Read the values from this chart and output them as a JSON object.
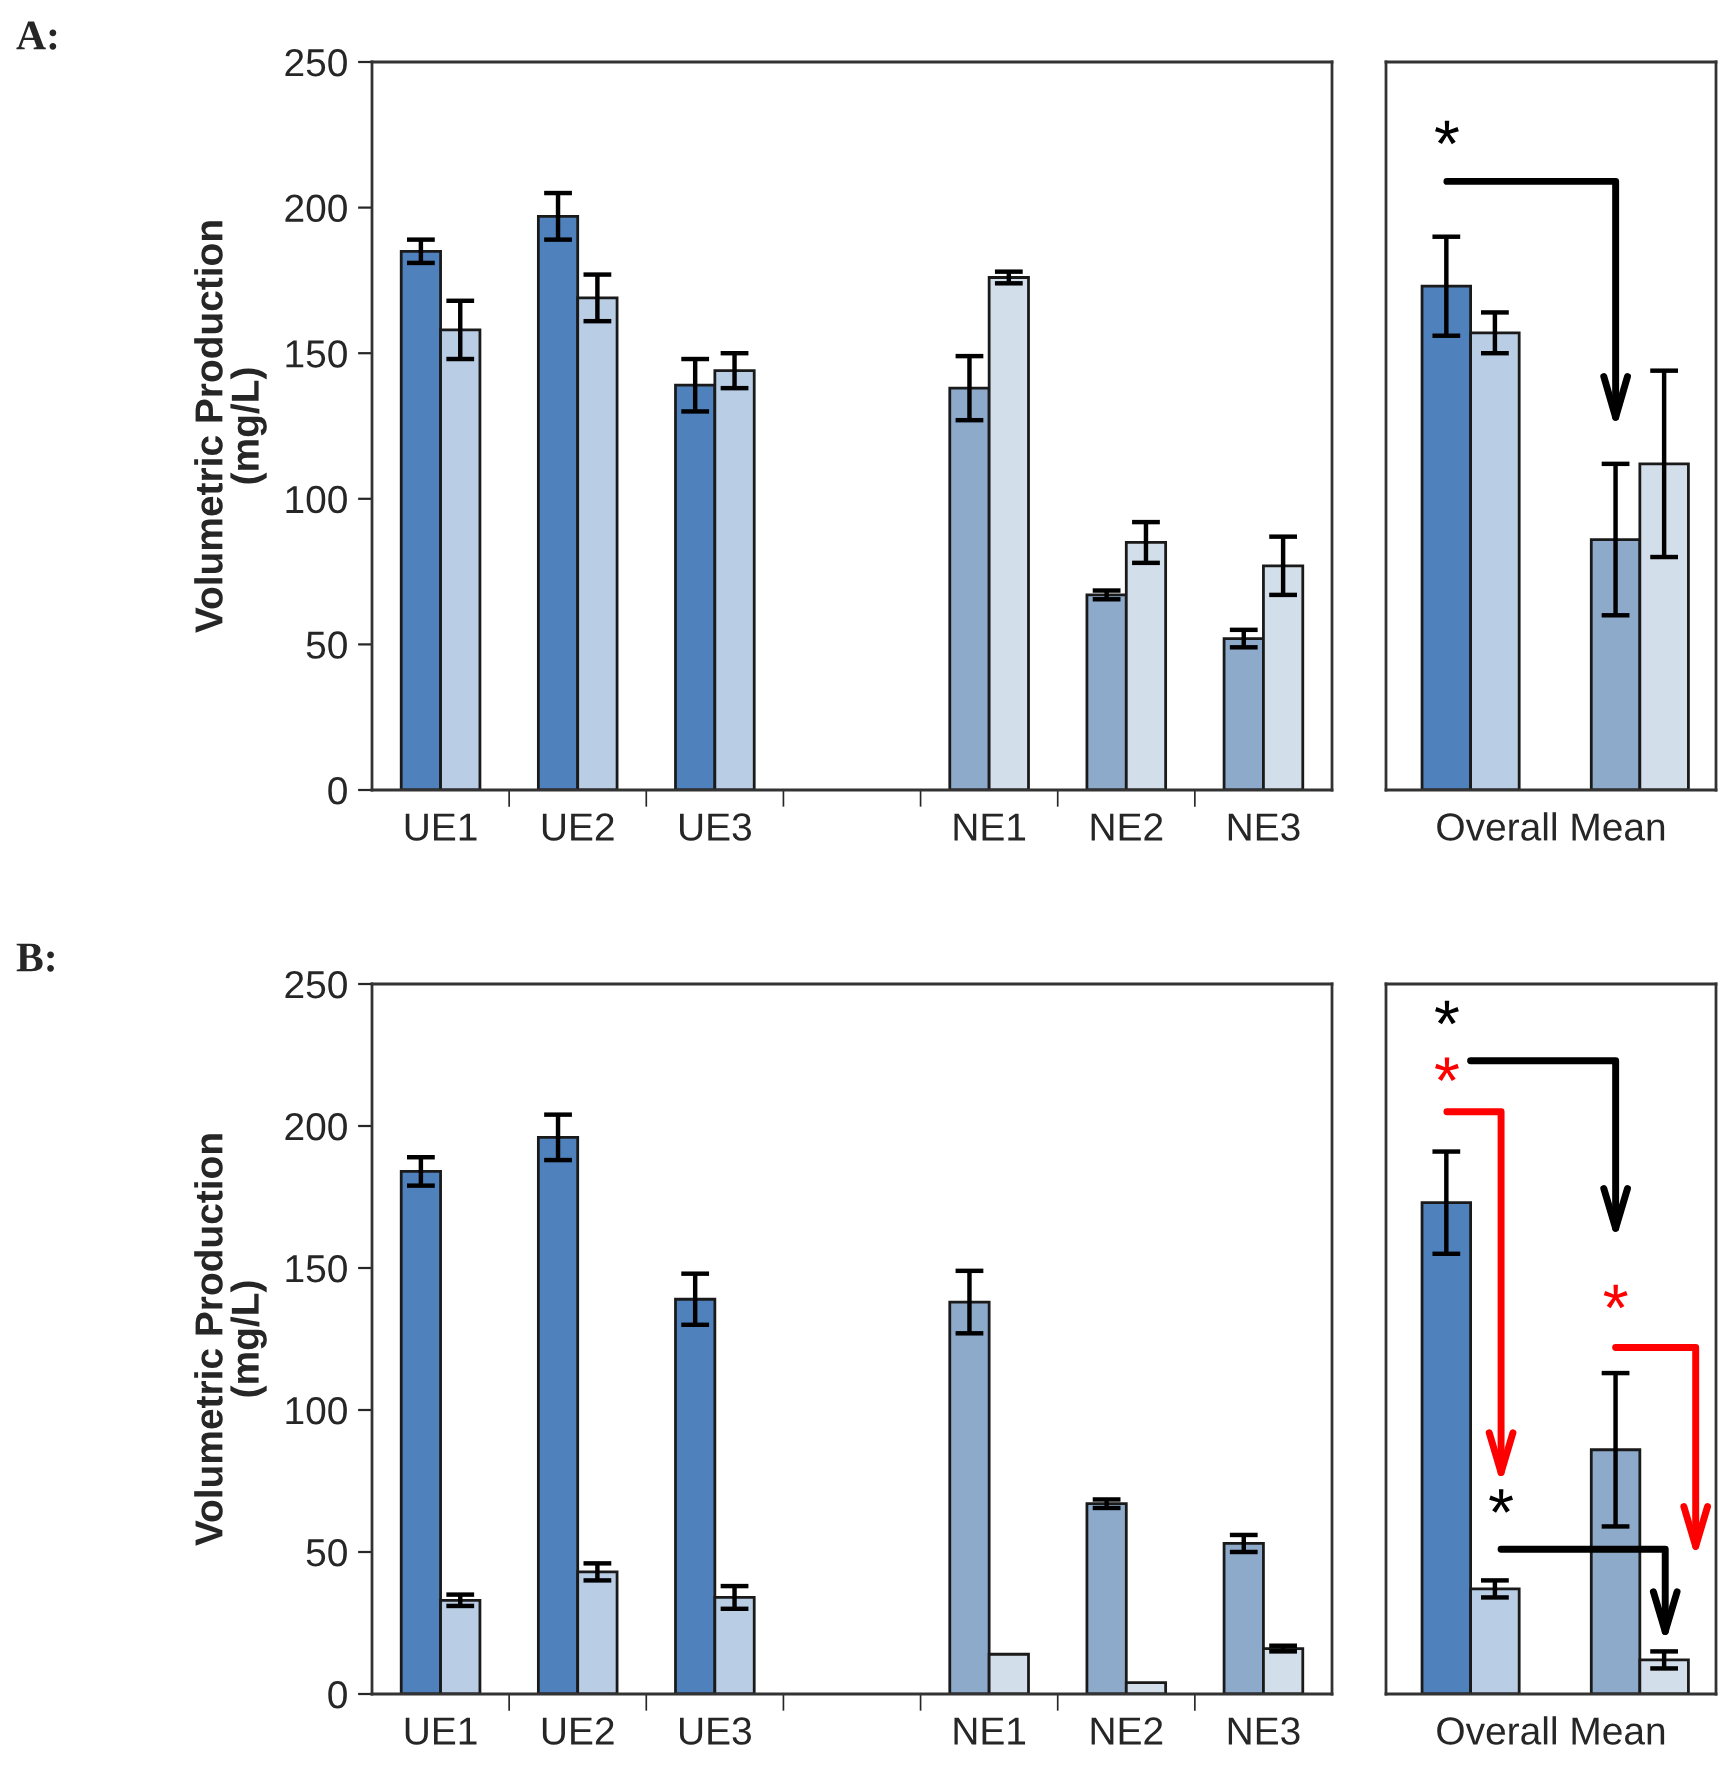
{
  "chart_data": [
    {
      "type": "bar",
      "title": "A:",
      "ylabel": "Volumetric Production\n(mg/L)",
      "categories": [
        "UE1",
        "UE2",
        "UE3",
        null,
        "NE1",
        "NE2",
        "NE3"
      ],
      "ylim": [
        0,
        250
      ],
      "yticks": [
        0,
        50,
        100,
        150,
        200,
        250
      ],
      "series": [
        {
          "colors": [
            "#4f81bd",
            "#4f81bd",
            "#4f81bd",
            null,
            "#8eaacb",
            "#8eaacb",
            "#8eaacb"
          ],
          "values": [
            185,
            197,
            139,
            null,
            138,
            67,
            52
          ],
          "errors": [
            4,
            8,
            9,
            null,
            11,
            1.5,
            3
          ]
        },
        {
          "colors": [
            "#b9cde5",
            "#b9cde5",
            "#b9cde5",
            null,
            "#d3deeb",
            "#d3deeb",
            "#d3deeb"
          ],
          "values": [
            158,
            169,
            144,
            null,
            176,
            85,
            77
          ],
          "errors": [
            10,
            8,
            6,
            null,
            2,
            7,
            10
          ]
        }
      ]
    },
    {
      "type": "bar",
      "xlabel": "Overall Mean",
      "categories": [
        null,
        null
      ],
      "ylim": [
        0,
        250
      ],
      "tick_labels": false,
      "annotations": [
        "*"
      ],
      "series": [
        {
          "colors": [
            "#4f81bd",
            "#8eaacb"
          ],
          "values": [
            173,
            86
          ],
          "errors": [
            17,
            26
          ]
        },
        {
          "colors": [
            "#b9cde5",
            "#d3deeb"
          ],
          "values": [
            157,
            112
          ],
          "errors": [
            7,
            32
          ]
        }
      ]
    },
    {
      "type": "bar",
      "title": "B:",
      "ylabel": "Volumetric Production\n(mg/L)",
      "categories": [
        "UE1",
        "UE2",
        "UE3",
        null,
        "NE1",
        "NE2",
        "NE3"
      ],
      "ylim": [
        0,
        250
      ],
      "yticks": [
        0,
        50,
        100,
        150,
        200,
        250
      ],
      "series": [
        {
          "colors": [
            "#4f81bd",
            "#4f81bd",
            "#4f81bd",
            null,
            "#8eaacb",
            "#8eaacb",
            "#8eaacb"
          ],
          "values": [
            184,
            196,
            139,
            null,
            138,
            67,
            53
          ],
          "errors": [
            5,
            8,
            9,
            null,
            11,
            1.5,
            3
          ]
        },
        {
          "colors": [
            "#b9cde5",
            "#b9cde5",
            "#b9cde5",
            null,
            "#d3deeb",
            "#d3deeb",
            "#d3deeb"
          ],
          "values": [
            33,
            43,
            34,
            null,
            14,
            4,
            16
          ],
          "errors": [
            2,
            3,
            4,
            null,
            null,
            null,
            1
          ]
        }
      ]
    },
    {
      "type": "bar",
      "xlabel": "Overall Mean",
      "categories": [
        null,
        null
      ],
      "ylim": [
        0,
        250
      ],
      "tick_labels": false,
      "annotations": [
        "*",
        "*",
        "*",
        "*"
      ],
      "series": [
        {
          "colors": [
            "#4f81bd",
            "#8eaacb"
          ],
          "values": [
            173,
            86
          ],
          "errors": [
            18,
            27
          ]
        },
        {
          "colors": [
            "#b9cde5",
            "#d3deeb"
          ],
          "values": [
            37,
            12
          ],
          "errors": [
            3,
            3
          ]
        }
      ]
    }
  ]
}
